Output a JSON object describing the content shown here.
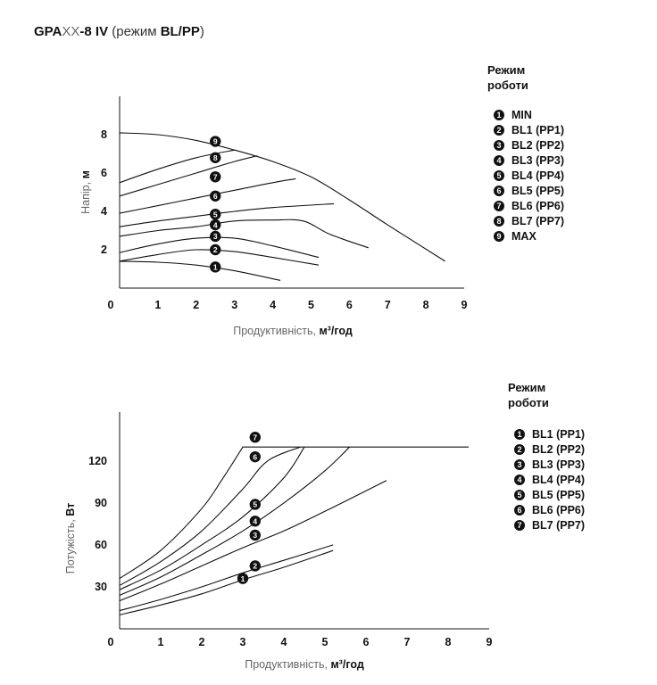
{
  "title": {
    "code_bold": "GPA",
    "code_light": "XX",
    "code_tail": "-8 IV",
    "mode_prefix": " (режим ",
    "mode_bold": "BL/PP",
    "mode_suffix": ")"
  },
  "legend_top": {
    "title_line1": "Режим",
    "title_line2": "роботи",
    "items": [
      {
        "num": "1",
        "label": "MIN"
      },
      {
        "num": "2",
        "label": "BL1 (PP1)"
      },
      {
        "num": "3",
        "label": "BL2 (PP2)"
      },
      {
        "num": "4",
        "label": "BL3 (PP3)"
      },
      {
        "num": "5",
        "label": "BL4 (PP4)"
      },
      {
        "num": "6",
        "label": "BL5 (PP5)"
      },
      {
        "num": "7",
        "label": "BL6 (PP6)"
      },
      {
        "num": "8",
        "label": "BL7 (PP7)"
      },
      {
        "num": "9",
        "label": "MAX"
      }
    ]
  },
  "legend_bottom": {
    "title_line1": "Режим",
    "title_line2": "роботи",
    "items": [
      {
        "num": "1",
        "label": "BL1 (PP1)"
      },
      {
        "num": "2",
        "label": "BL2 (PP2)"
      },
      {
        "num": "3",
        "label": "BL3 (PP3)"
      },
      {
        "num": "4",
        "label": "BL4 (PP4)"
      },
      {
        "num": "5",
        "label": "BL5 (PP5)"
      },
      {
        "num": "6",
        "label": "BL6 (PP6)"
      },
      {
        "num": "7",
        "label": "BL7 (PP7)"
      }
    ]
  },
  "colors": {
    "line": "#111111",
    "axis_text": "#666666",
    "badge": "#111111"
  },
  "chart_data": [
    {
      "type": "line",
      "id": "head",
      "xlabel_prefix": "Продуктивність, ",
      "xlabel_unit": "м³/год",
      "ylabel_prefix": "Напір, ",
      "ylabel_unit": "м",
      "xlim": [
        0,
        9
      ],
      "ylim": [
        0,
        10
      ],
      "xticks": [
        0,
        1,
        2,
        3,
        4,
        5,
        6,
        7,
        8,
        9
      ],
      "yticks": [
        0,
        2,
        4,
        6,
        8
      ],
      "series": [
        {
          "name": "MIN",
          "badge": "1",
          "label_at": [
            2.5,
            1.1
          ],
          "points": [
            [
              0,
              1.4
            ],
            [
              1,
              1.35
            ],
            [
              2,
              1.2
            ],
            [
              3,
              0.9
            ],
            [
              4.2,
              0.4
            ]
          ]
        },
        {
          "name": "BL1 (PP1)",
          "badge": "2",
          "label_at": [
            2.5,
            2.0
          ],
          "points": [
            [
              0,
              1.4
            ],
            [
              1,
              1.75
            ],
            [
              2,
              2.0
            ],
            [
              3,
              1.9
            ],
            [
              4,
              1.6
            ],
            [
              5.2,
              1.2
            ]
          ]
        },
        {
          "name": "BL2 (PP2)",
          "badge": "3",
          "label_at": [
            2.5,
            2.7
          ],
          "points": [
            [
              0,
              1.85
            ],
            [
              1,
              2.3
            ],
            [
              2,
              2.6
            ],
            [
              3,
              2.6
            ],
            [
              4,
              2.2
            ],
            [
              5.2,
              1.6
            ]
          ]
        },
        {
          "name": "BL3 (PP3)",
          "badge": "4",
          "label_at": [
            2.5,
            3.3
          ],
          "points": [
            [
              0,
              2.7
            ],
            [
              1,
              3.0
            ],
            [
              2,
              3.2
            ],
            [
              3,
              3.5
            ],
            [
              4,
              3.55
            ],
            [
              4.8,
              3.5
            ],
            [
              5.5,
              2.8
            ],
            [
              6.5,
              2.1
            ]
          ]
        },
        {
          "name": "BL4 (PP4)",
          "badge": "5",
          "label_at": [
            2.5,
            3.85
          ],
          "points": [
            [
              0,
              3.2
            ],
            [
              1,
              3.5
            ],
            [
              2,
              3.75
            ],
            [
              3,
              4.0
            ],
            [
              4,
              4.2
            ],
            [
              5.6,
              4.4
            ]
          ]
        },
        {
          "name": "BL5 (PP5)",
          "badge": "6",
          "label_at": [
            2.5,
            4.8
          ],
          "points": [
            [
              0,
              3.9
            ],
            [
              1,
              4.3
            ],
            [
              2,
              4.7
            ],
            [
              3,
              5.1
            ],
            [
              4,
              5.5
            ],
            [
              4.6,
              5.7
            ]
          ]
        },
        {
          "name": "BL6 (PP6)",
          "badge": "7",
          "label_at": [
            2.5,
            5.8
          ],
          "points": [
            [
              0,
              4.8
            ],
            [
              1,
              5.4
            ],
            [
              2,
              6.0
            ],
            [
              3,
              6.6
            ],
            [
              3.6,
              6.9
            ]
          ]
        },
        {
          "name": "BL7 (PP7)",
          "badge": "8",
          "label_at": [
            2.5,
            6.8
          ],
          "points": [
            [
              0,
              5.5
            ],
            [
              1,
              6.2
            ],
            [
              2,
              6.8
            ],
            [
              3,
              7.2
            ]
          ]
        },
        {
          "name": "MAX",
          "badge": "9",
          "label_at": [
            2.5,
            7.65
          ],
          "points": [
            [
              0,
              8.1
            ],
            [
              1,
              8.0
            ],
            [
              2,
              7.7
            ],
            [
              3,
              7.2
            ],
            [
              4,
              6.6
            ],
            [
              5,
              5.8
            ],
            [
              6,
              4.6
            ],
            [
              7,
              3.3
            ],
            [
              8.5,
              1.4
            ]
          ]
        }
      ]
    },
    {
      "type": "line",
      "id": "power",
      "xlabel_prefix": "Продуктивність, ",
      "xlabel_unit": "м³/год",
      "ylabel_prefix": "Потужість, ",
      "ylabel_unit": "Вт",
      "xlim": [
        0,
        9
      ],
      "ylim": [
        0,
        155
      ],
      "xticks": [
        0,
        1,
        2,
        3,
        4,
        5,
        6,
        7,
        8,
        9
      ],
      "yticks": [
        0,
        30,
        60,
        90,
        120
      ],
      "series": [
        {
          "name": "BL1 (PP1)",
          "badge": "1",
          "label_at": [
            3.0,
            36
          ],
          "points": [
            [
              0,
              10
            ],
            [
              1,
              17
            ],
            [
              2,
              25
            ],
            [
              3,
              35
            ],
            [
              4,
              44
            ],
            [
              5.2,
              56
            ]
          ]
        },
        {
          "name": "BL2 (PP2)",
          "badge": "2",
          "label_at": [
            3.3,
            45
          ],
          "points": [
            [
              0,
              13
            ],
            [
              1,
              21
            ],
            [
              2,
              30
            ],
            [
              3,
              40
            ],
            [
              4,
              49
            ],
            [
              5.2,
              60
            ]
          ]
        },
        {
          "name": "BL3 (PP3)",
          "badge": "3",
          "label_at": [
            3.3,
            67
          ],
          "points": [
            [
              0,
              20
            ],
            [
              1,
              32
            ],
            [
              2,
              45
            ],
            [
              3,
              58
            ],
            [
              4,
              70
            ],
            [
              5,
              84
            ],
            [
              6.5,
              106
            ]
          ]
        },
        {
          "name": "BL4 (PP4)",
          "badge": "4",
          "label_at": [
            3.3,
            77
          ],
          "points": [
            [
              0,
              24
            ],
            [
              1,
              37
            ],
            [
              2,
              53
            ],
            [
              3,
              70
            ],
            [
              4,
              90
            ],
            [
              5,
              113
            ],
            [
              5.6,
              130
            ]
          ]
        },
        {
          "name": "BL5 (PP5)",
          "badge": "5",
          "label_at": [
            3.3,
            89
          ],
          "points": [
            [
              0,
              28
            ],
            [
              1,
              42
            ],
            [
              2,
              60
            ],
            [
              3,
              80
            ],
            [
              4,
              108
            ],
            [
              4.5,
              130
            ]
          ]
        },
        {
          "name": "BL6 (PP6)",
          "badge": "6",
          "label_at": [
            3.3,
            123
          ],
          "points": [
            [
              0,
              31
            ],
            [
              1,
              48
            ],
            [
              2,
              70
            ],
            [
              3,
              100
            ],
            [
              3.6,
              120
            ],
            [
              4.4,
              130
            ]
          ]
        },
        {
          "name": "BL7 (PP7)",
          "badge": "7",
          "label_at": [
            3.3,
            137
          ],
          "points": [
            [
              0,
              36
            ],
            [
              1,
              56
            ],
            [
              2,
              86
            ],
            [
              2.5,
              107
            ],
            [
              3,
              130
            ],
            [
              8.5,
              130
            ]
          ]
        }
      ]
    }
  ]
}
